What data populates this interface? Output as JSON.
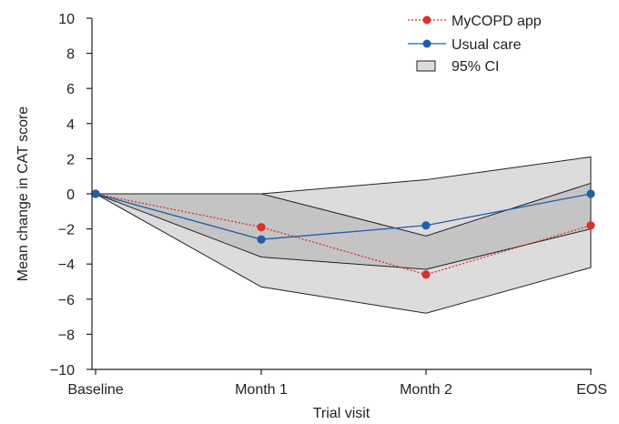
{
  "chart_data": {
    "type": "line",
    "categories": [
      "Baseline",
      "Month 1",
      "Month 2",
      "EOS"
    ],
    "xlabel": "Trial visit",
    "ylabel": "Mean change in CAT score",
    "ylim": [
      -10,
      10
    ],
    "yticks": [
      10,
      8,
      6,
      4,
      2,
      0,
      -2,
      -4,
      -6,
      -8,
      -10
    ],
    "grid": false,
    "legend_position": "top-right",
    "series": [
      {
        "name": "MyCOPD app",
        "values": [
          0,
          -1.9,
          -4.6,
          -1.8
        ],
        "color": "#d9312b",
        "line_style": "dotted",
        "ci_lower": [
          0,
          -5.3,
          -6.8,
          -4.2
        ],
        "ci_upper": [
          0,
          0,
          0.8,
          2.1
        ]
      },
      {
        "name": "Usual care",
        "values": [
          0,
          -2.6,
          -1.8,
          0
        ],
        "color": "#1f5fa8",
        "line_style": "solid",
        "ci_lower": [
          0,
          -3.6,
          -4.3,
          -2.0
        ],
        "ci_upper": [
          0,
          0,
          -2.4,
          0.6
        ]
      }
    ],
    "ci_label": "95% CI",
    "colors": {
      "ci_fill": "#dcdcdc",
      "ci_overlap": "#b9b9b9",
      "ci_edge": "#222222",
      "axis": "#222222"
    }
  }
}
